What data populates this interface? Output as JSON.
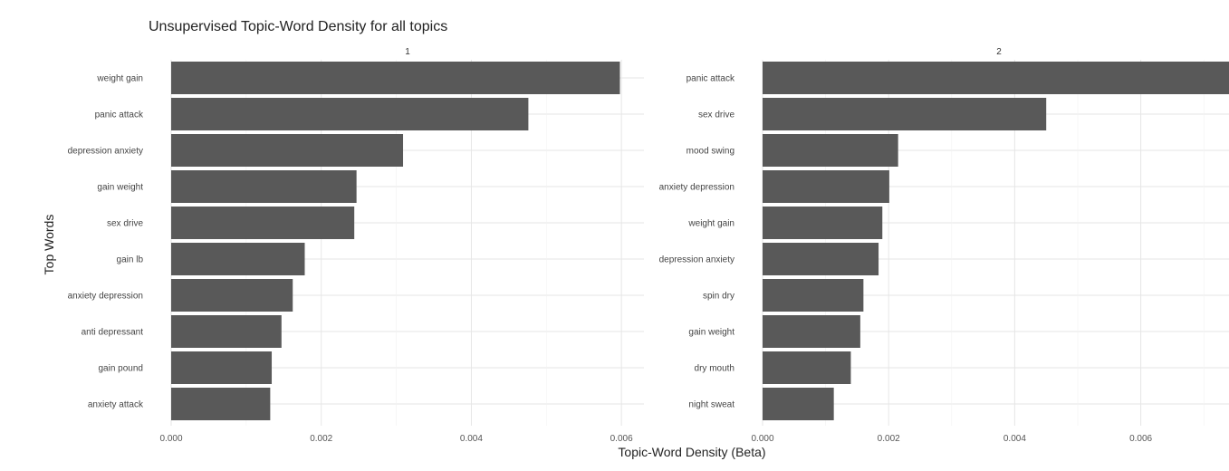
{
  "chart_data": {
    "type": "bar",
    "orientation": "horizontal",
    "title": "Unsupervised Topic-Word Density for all topics",
    "xlabel": "Topic-Word Density (Beta)",
    "ylabel": "Top Words",
    "grid": true,
    "x_ticks": [
      "0.000",
      "0.002",
      "0.004",
      "0.006"
    ],
    "bar_color": "#595959",
    "facets": [
      {
        "label": "1",
        "xlim": [
          0,
          0.0063
        ],
        "categories": [
          "weight gain",
          "panic attack",
          "depression anxiety",
          "gain weight",
          "sex drive",
          "gain lb",
          "anxiety depression",
          "anti depressant",
          "gain pound",
          "anxiety attack"
        ],
        "values": [
          0.00598,
          0.00476,
          0.00309,
          0.00247,
          0.00244,
          0.00178,
          0.00162,
          0.00147,
          0.00134,
          0.00132
        ]
      },
      {
        "label": "2",
        "xlim": [
          0,
          0.0075
        ],
        "categories": [
          "panic attack",
          "sex drive",
          "mood swing",
          "anxiety depression",
          "weight gain",
          "depression anxiety",
          "spin dry",
          "gain weight",
          "dry mouth",
          "night sweat"
        ],
        "values": [
          0.0075,
          0.0045,
          0.00215,
          0.00201,
          0.0019,
          0.00184,
          0.0016,
          0.00155,
          0.0014,
          0.00113
        ]
      }
    ]
  }
}
